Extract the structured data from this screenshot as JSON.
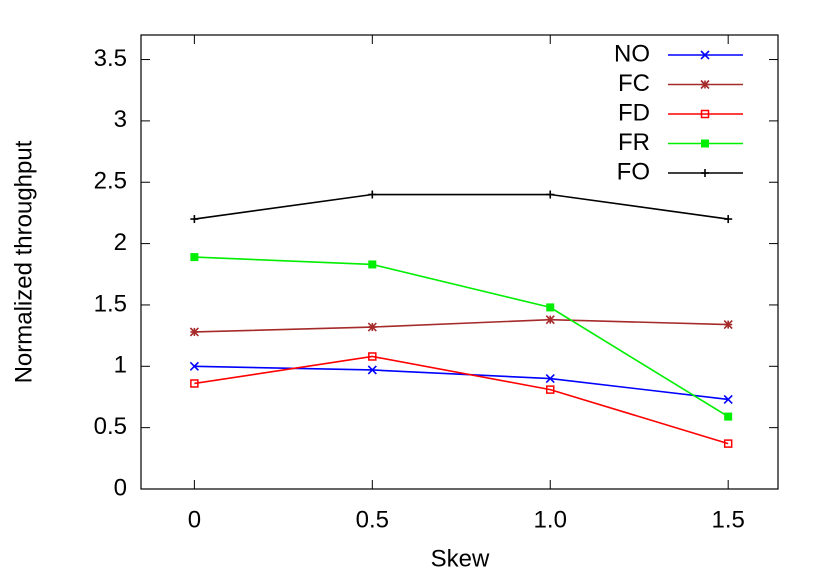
{
  "chart_data": {
    "type": "line",
    "xlabel": "Skew",
    "ylabel": "Normalized throughput",
    "x": [
      0,
      0.5,
      1,
      1.5
    ],
    "xlim": [
      -0.15,
      1.64
    ],
    "xticks": [
      0,
      0.5,
      {
        "value": 1,
        "label": "1.0"
      },
      1.5
    ],
    "ylim": [
      0,
      3.7
    ],
    "yticks": [
      0,
      0.5,
      1,
      1.5,
      2,
      2.5,
      3,
      3.5
    ],
    "legend": "top-right",
    "series": [
      {
        "name": "NO",
        "color": "#0000ff",
        "marker": "x",
        "values": [
          1.0,
          0.97,
          0.9,
          0.73
        ]
      },
      {
        "name": "FC",
        "color": "#a52a2a",
        "marker": "asterisk",
        "values": [
          1.28,
          1.32,
          1.38,
          1.34
        ]
      },
      {
        "name": "FD",
        "color": "#ff0000",
        "marker": "open-square",
        "values": [
          0.86,
          1.08,
          0.81,
          0.37
        ]
      },
      {
        "name": "FR",
        "color": "#00ee00",
        "marker": "filled-square",
        "values": [
          1.89,
          1.83,
          1.48,
          0.59
        ]
      },
      {
        "name": "FO",
        "color": "#000000",
        "marker": "plus",
        "values": [
          2.2,
          2.4,
          2.4,
          2.2
        ]
      }
    ]
  }
}
